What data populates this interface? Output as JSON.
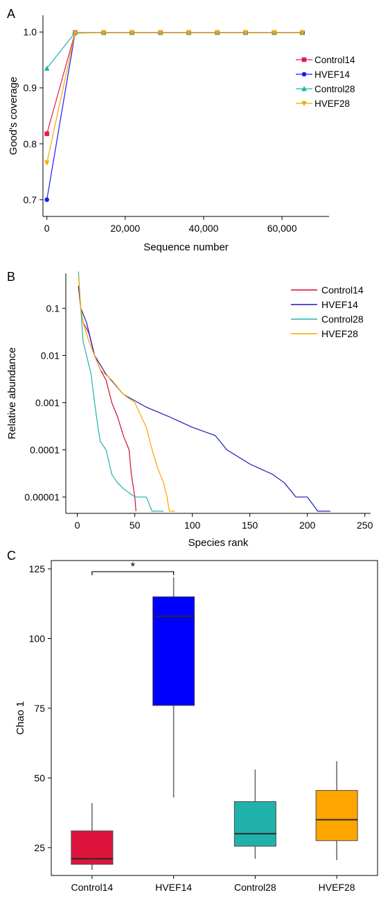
{
  "chart_data": [
    {
      "type": "line",
      "panel_label": "A",
      "xlabel": "Sequence number",
      "ylabel": "Good's coverage",
      "xlim": [
        -1000,
        72000
      ],
      "ylim": [
        0.67,
        1.03
      ],
      "xticks": [
        {
          "value": 0,
          "label": "0"
        },
        {
          "value": 20000,
          "label": "20,000"
        },
        {
          "value": 40000,
          "label": "40,000"
        },
        {
          "value": 60000,
          "label": "60,000"
        }
      ],
      "yticks": [
        {
          "value": 0.7,
          "label": "0.7"
        },
        {
          "value": 0.8,
          "label": "0.8"
        },
        {
          "value": 0.9,
          "label": "0.9"
        },
        {
          "value": 1.0,
          "label": "1.0"
        }
      ],
      "x": [
        0,
        7200,
        14500,
        21700,
        29000,
        36200,
        43500,
        50700,
        58000,
        65200
      ],
      "series": [
        {
          "name": "Control14",
          "color": "#e31a47",
          "marker": "square",
          "values": [
            0.818,
            0.999,
            0.999,
            0.999,
            0.999,
            0.999,
            0.999,
            0.999,
            0.999,
            0.999
          ]
        },
        {
          "name": "HVEF14",
          "color": "#1a1aff",
          "marker": "circle",
          "values": [
            0.7,
            0.998,
            0.999,
            0.999,
            0.999,
            0.999,
            0.999,
            0.999,
            0.999,
            0.999
          ]
        },
        {
          "name": "Control28",
          "color": "#20b2aa",
          "marker": "triangle-up",
          "values": [
            0.935,
            0.999,
            0.999,
            0.999,
            0.999,
            0.999,
            0.999,
            0.999,
            0.999,
            0.999
          ]
        },
        {
          "name": "HVEF28",
          "color": "#f5a800",
          "marker": "triangle-down",
          "values": [
            0.766,
            0.998,
            0.999,
            0.999,
            0.999,
            0.999,
            0.999,
            0.999,
            0.999,
            0.999
          ]
        }
      ],
      "legend": "right"
    },
    {
      "type": "line",
      "panel_label": "B",
      "xlabel": "Species rank",
      "ylabel": "Relative abundance",
      "y_scale": "log",
      "xlim": [
        -10,
        255
      ],
      "ylim": [
        4.5e-06,
        0.55
      ],
      "xticks": [
        {
          "value": 0,
          "label": "0"
        },
        {
          "value": 50,
          "label": "50"
        },
        {
          "value": 100,
          "label": "100"
        },
        {
          "value": 150,
          "label": "150"
        },
        {
          "value": 200,
          "label": "200"
        },
        {
          "value": 250,
          "label": "250"
        }
      ],
      "yticks": [
        {
          "value": 0.1,
          "label": "0.1"
        },
        {
          "value": 0.01,
          "label": "0.01"
        },
        {
          "value": 0.001,
          "label": "0.001"
        },
        {
          "value": 0.0001,
          "label": "0.0001"
        },
        {
          "value": 1e-05,
          "label": "0.00001"
        }
      ],
      "series": [
        {
          "name": "Control14",
          "color": "#c8102e",
          "points": [
            [
              1,
              0.3
            ],
            [
              3,
              0.1
            ],
            [
              5,
              0.05
            ],
            [
              10,
              0.03
            ],
            [
              15,
              0.01
            ],
            [
              20,
              0.005
            ],
            [
              25,
              0.003
            ],
            [
              30,
              0.001
            ],
            [
              35,
              0.0005
            ],
            [
              40,
              0.0002
            ],
            [
              45,
              0.0001
            ],
            [
              47,
              3e-05
            ],
            [
              50,
              1e-05
            ],
            [
              51,
              5e-06
            ]
          ]
        },
        {
          "name": "HVEF14",
          "color": "#1a1ab8",
          "points": [
            [
              1,
              0.3
            ],
            [
              3,
              0.1
            ],
            [
              8,
              0.05
            ],
            [
              15,
              0.01
            ],
            [
              25,
              0.004
            ],
            [
              40,
              0.0015
            ],
            [
              60,
              0.0008
            ],
            [
              80,
              0.0005
            ],
            [
              100,
              0.0003
            ],
            [
              120,
              0.0002
            ],
            [
              130,
              0.0001
            ],
            [
              150,
              5e-05
            ],
            [
              170,
              3e-05
            ],
            [
              180,
              2e-05
            ],
            [
              190,
              1e-05
            ],
            [
              200,
              1e-05
            ],
            [
              209,
              5e-06
            ],
            [
              220,
              5e-06
            ]
          ]
        },
        {
          "name": "Control28",
          "color": "#20b2aa",
          "points": [
            [
              1,
              0.6
            ],
            [
              3,
              0.1
            ],
            [
              5,
              0.02
            ],
            [
              8,
              0.01
            ],
            [
              12,
              0.004
            ],
            [
              15,
              0.001
            ],
            [
              18,
              0.0003
            ],
            [
              20,
              0.00015
            ],
            [
              25,
              0.0001
            ],
            [
              30,
              3e-05
            ],
            [
              35,
              2e-05
            ],
            [
              40,
              1.5e-05
            ],
            [
              50,
              1e-05
            ],
            [
              60,
              1e-05
            ],
            [
              65,
              5e-06
            ],
            [
              75,
              5e-06
            ]
          ]
        },
        {
          "name": "HVEF28",
          "color": "#f5a800",
          "points": [
            [
              1,
              0.5
            ],
            [
              3,
              0.1
            ],
            [
              5,
              0.05
            ],
            [
              10,
              0.02
            ],
            [
              20,
              0.005
            ],
            [
              30,
              0.003
            ],
            [
              40,
              0.0015
            ],
            [
              50,
              0.001
            ],
            [
              60,
              0.0003
            ],
            [
              65,
              0.0001
            ],
            [
              70,
              4e-05
            ],
            [
              75,
              2e-05
            ],
            [
              78,
              1e-05
            ],
            [
              80,
              5e-06
            ],
            [
              85,
              5e-06
            ]
          ]
        }
      ],
      "legend": "top-right"
    },
    {
      "type": "box",
      "panel_label": "C",
      "xlabel": "",
      "ylabel": "Chao 1",
      "ylim": [
        15,
        128
      ],
      "yticks": [
        {
          "value": 25,
          "label": "25"
        },
        {
          "value": 50,
          "label": "50"
        },
        {
          "value": 75,
          "label": "75"
        },
        {
          "value": 100,
          "label": "100"
        },
        {
          "value": 125,
          "label": "125"
        }
      ],
      "categories": [
        "Control14",
        "HVEF14",
        "Control28",
        "HVEF28"
      ],
      "boxes": [
        {
          "name": "Control14",
          "color": "#dc143c",
          "min": 17,
          "q1": 19,
          "median": 21,
          "q3": 31,
          "max": 41
        },
        {
          "name": "HVEF14",
          "color": "#0000ff",
          "min": 43,
          "q1": 76,
          "median": 108,
          "q3": 115,
          "max": 122
        },
        {
          "name": "Control28",
          "color": "#20b2aa",
          "min": 21,
          "q1": 25.5,
          "median": 30,
          "q3": 41.5,
          "max": 53
        },
        {
          "name": "HVEF28",
          "color": "#ffa500",
          "min": 20.5,
          "q1": 27.5,
          "median": 35,
          "q3": 45.5,
          "max": 56
        }
      ],
      "significance": {
        "from": "Control14",
        "to": "HVEF14",
        "value": 124,
        "label": "*"
      }
    }
  ]
}
